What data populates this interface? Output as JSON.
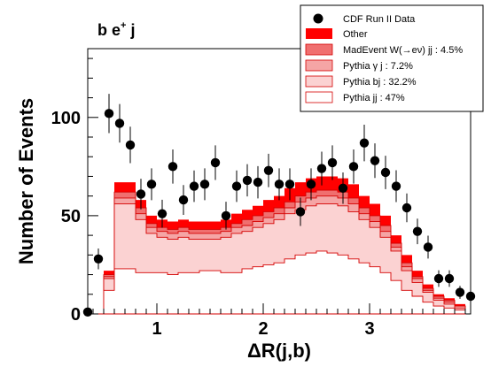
{
  "chart_data": {
    "type": "bar",
    "stacked": true,
    "annotation_main": "b e",
    "annotation_sup": "+",
    "annotation_tail": " j",
    "xlabel": "ΔR(j,b)",
    "ylabel": "Number of Events",
    "xlim": [
      0.35,
      3.95
    ],
    "ylim": [
      0,
      135
    ],
    "xticks": [
      1,
      2,
      3
    ],
    "yticks": [
      0,
      50,
      100
    ],
    "legend_position": "top-right",
    "legend": [
      {
        "name": "CDF Run II Data",
        "kind": "marker",
        "color": "#000000"
      },
      {
        "name": "Other",
        "kind": "fill",
        "color": "#ff0000"
      },
      {
        "name": "MadEvent W(→eν) jj : 4.5%",
        "kind": "fill",
        "color": "#f06f6f"
      },
      {
        "name": "Pythia γ j : 7.2%",
        "kind": "fill",
        "color": "#f5a5a5"
      },
      {
        "name": "Pythia bj : 32.2%",
        "kind": "fill",
        "color": "#fbd2d2"
      },
      {
        "name": "Pythia jj : 47%",
        "kind": "fill",
        "color": "#ffffff"
      }
    ],
    "bin_edges": [
      0.4,
      0.5,
      0.6,
      0.7,
      0.8,
      0.9,
      1.0,
      1.1,
      1.2,
      1.3,
      1.4,
      1.5,
      1.6,
      1.7,
      1.8,
      1.9,
      2.0,
      2.1,
      2.2,
      2.3,
      2.4,
      2.5,
      2.6,
      2.7,
      2.8,
      2.9,
      3.0,
      3.1,
      3.2,
      3.3,
      3.4,
      3.5,
      3.6,
      3.7,
      3.8,
      3.9
    ],
    "series": [
      {
        "name": "Pythia jj : 47%",
        "color": "#ffffff",
        "values": [
          0,
          12,
          23,
          23,
          21,
          21,
          21,
          20,
          21,
          21,
          22,
          22,
          21,
          21,
          23,
          24,
          25,
          26,
          28,
          30,
          31,
          32,
          31,
          30,
          28,
          26,
          24,
          21,
          17,
          12,
          9,
          6,
          4,
          3,
          2
        ]
      },
      {
        "name": "Pythia bj : 32.2%",
        "color": "#fbd2d2",
        "values": [
          0,
          6,
          33,
          33,
          27,
          20,
          18,
          18,
          18,
          17,
          16,
          16,
          18,
          20,
          19,
          20,
          21,
          22,
          23,
          23,
          24,
          24,
          25,
          25,
          24,
          22,
          20,
          18,
          15,
          10,
          7,
          5,
          3,
          2,
          1
        ]
      },
      {
        "name": "Pythia γ j : 7.2%",
        "color": "#f5a5a5",
        "values": [
          0,
          1,
          3,
          3,
          3,
          3,
          3,
          3,
          3,
          3,
          3,
          3,
          3,
          3,
          3,
          3,
          3,
          3,
          3,
          4,
          4,
          4,
          4,
          4,
          4,
          3,
          3,
          3,
          2,
          2,
          2,
          1,
          1,
          1,
          1
        ]
      },
      {
        "name": "MadEvent W(→eν) jj : 4.5%",
        "color": "#f06f6f",
        "values": [
          0,
          1,
          3,
          3,
          3,
          2,
          2,
          2,
          2,
          2,
          2,
          2,
          2,
          2,
          3,
          3,
          3,
          3,
          3,
          3,
          3,
          3,
          3,
          3,
          3,
          3,
          3,
          3,
          2,
          2,
          1,
          1,
          1,
          1,
          0
        ]
      },
      {
        "name": "Other",
        "color": "#ff0000",
        "values": [
          0,
          2,
          5,
          5,
          4,
          4,
          4,
          4,
          4,
          4,
          4,
          4,
          4,
          5,
          5,
          5,
          6,
          6,
          7,
          7,
          7,
          7,
          7,
          7,
          7,
          6,
          6,
          5,
          4,
          4,
          3,
          2,
          1,
          1,
          1
        ]
      }
    ],
    "data_points": {
      "name": "CDF Run II Data",
      "x": [
        0.35,
        0.45,
        0.55,
        0.65,
        0.75,
        0.85,
        0.95,
        1.05,
        1.15,
        1.25,
        1.35,
        1.45,
        1.55,
        1.65,
        1.75,
        1.85,
        1.95,
        2.05,
        2.15,
        2.25,
        2.35,
        2.45,
        2.55,
        2.65,
        2.75,
        2.85,
        2.95,
        3.05,
        3.15,
        3.25,
        3.35,
        3.45,
        3.55,
        3.65,
        3.75,
        3.85,
        3.95
      ],
      "y": [
        1,
        28,
        102,
        97,
        86,
        61,
        66,
        51,
        75,
        58,
        65,
        66,
        77,
        50,
        65,
        68,
        67,
        73,
        66,
        66,
        52,
        66,
        74,
        77,
        64,
        75,
        87,
        78,
        72,
        65,
        54,
        42,
        34,
        18,
        18,
        11,
        9
      ],
      "err": [
        1,
        5.3,
        10,
        9.8,
        9.3,
        7.8,
        8.1,
        7.1,
        8.7,
        7.6,
        8,
        8.1,
        8.8,
        7.1,
        8,
        8.2,
        8.2,
        8.5,
        8.1,
        8.1,
        7.2,
        8.1,
        8.6,
        8.8,
        8,
        8.7,
        9.3,
        8.8,
        8.5,
        8.1,
        7.3,
        6.5,
        5.8,
        4.2,
        4.2,
        3.3,
        3
      ]
    }
  }
}
